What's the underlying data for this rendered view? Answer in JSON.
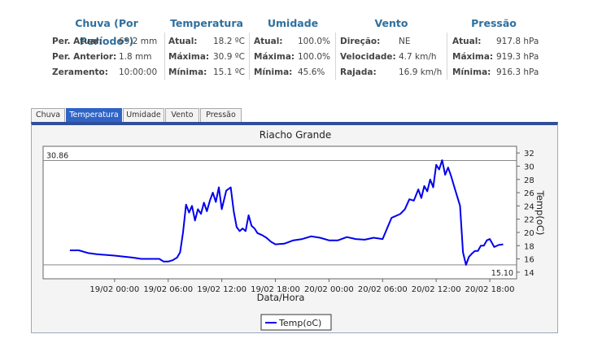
{
  "stats": {
    "chuva": {
      "title": "Chuva (Por Período*)",
      "rows": [
        {
          "label": "Per. Atual:",
          "value": "69.2 mm"
        },
        {
          "label": "Per. Anterior:",
          "value": "1.8 mm"
        },
        {
          "label": "Zeramento:",
          "value": "10:00:00"
        }
      ]
    },
    "temperatura": {
      "title": "Temperatura",
      "rows": [
        {
          "label": "Atual:",
          "value": "18.2 ºC"
        },
        {
          "label": "Máxima:",
          "value": "30.9 ºC"
        },
        {
          "label": "Mínima:",
          "value": "15.1 ºC"
        }
      ]
    },
    "umidade": {
      "title": "Umidade",
      "rows": [
        {
          "label": "Atual:",
          "value": "100.0%"
        },
        {
          "label": "Máxima:",
          "value": "100.0%"
        },
        {
          "label": "Mínima:",
          "value": "45.6%"
        }
      ]
    },
    "vento": {
      "title": "Vento",
      "rows": [
        {
          "label": "Direção:",
          "value": "NE"
        },
        {
          "label": "Velocidade:",
          "value": "4.7 km/h"
        },
        {
          "label": "Rajada:",
          "value": "16.9 km/h"
        }
      ]
    },
    "pressao": {
      "title": "Pressão",
      "rows": [
        {
          "label": "Atual:",
          "value": "917.8 hPa"
        },
        {
          "label": "Máxima:",
          "value": "919.3 hPa"
        },
        {
          "label": "Mínima:",
          "value": "916.3 hPa"
        }
      ]
    }
  },
  "tabs": [
    "Chuva",
    "Temperatura",
    "Umidade",
    "Vento",
    "Pressão"
  ],
  "active_tab": "Temperatura",
  "colors": {
    "accent": "#2f63c6",
    "series": "#0000ee",
    "header": "#2e6f9e"
  },
  "chart_data": {
    "type": "line",
    "title": "Riacho Grande",
    "xlabel": "Data/Hora",
    "ylabel": "Temp(oC)",
    "ylim": [
      13,
      33
    ],
    "yticks": [
      14,
      16,
      18,
      20,
      22,
      24,
      26,
      28,
      30,
      32
    ],
    "xlim": [
      "2025-02-18 16:00",
      "2025-02-20 21:00"
    ],
    "xticks": [
      "19/02 00:00",
      "19/02 06:00",
      "19/02 12:00",
      "19/02 18:00",
      "20/02 00:00",
      "20/02 06:00",
      "20/02 12:00",
      "20/02 18:00"
    ],
    "ref_lines": [
      {
        "value": 30.86,
        "label": "30.86"
      },
      {
        "value": 15.1,
        "label": "15.10"
      }
    ],
    "grid": false,
    "legend": "bottom-center",
    "series": [
      {
        "name": "Temp(oC)",
        "x": [
          "2025-02-18 19:00",
          "2025-02-18 20:00",
          "2025-02-18 21:00",
          "2025-02-18 22:00",
          "2025-02-19 00:00",
          "2025-02-19 02:00",
          "2025-02-19 03:00",
          "2025-02-19 04:00",
          "2025-02-19 05:00",
          "2025-02-19 05:30",
          "2025-02-19 06:00",
          "2025-02-19 06:30",
          "2025-02-19 07:00",
          "2025-02-19 07:20",
          "2025-02-19 07:40",
          "2025-02-19 08:00",
          "2025-02-19 08:20",
          "2025-02-19 08:40",
          "2025-02-19 09:00",
          "2025-02-19 09:20",
          "2025-02-19 09:40",
          "2025-02-19 10:00",
          "2025-02-19 10:20",
          "2025-02-19 10:40",
          "2025-02-19 11:00",
          "2025-02-19 11:20",
          "2025-02-19 11:40",
          "2025-02-19 12:00",
          "2025-02-19 12:30",
          "2025-02-19 13:00",
          "2025-02-19 13:20",
          "2025-02-19 13:40",
          "2025-02-19 14:00",
          "2025-02-19 14:20",
          "2025-02-19 14:40",
          "2025-02-19 15:00",
          "2025-02-19 15:20",
          "2025-02-19 15:40",
          "2025-02-19 16:00",
          "2025-02-19 16:30",
          "2025-02-19 17:00",
          "2025-02-19 17:30",
          "2025-02-19 18:00",
          "2025-02-19 19:00",
          "2025-02-19 20:00",
          "2025-02-19 21:00",
          "2025-02-19 22:00",
          "2025-02-19 23:00",
          "2025-02-20 00:00",
          "2025-02-20 01:00",
          "2025-02-20 02:00",
          "2025-02-20 03:00",
          "2025-02-20 04:00",
          "2025-02-20 05:00",
          "2025-02-20 06:00",
          "2025-02-20 07:00",
          "2025-02-20 07:30",
          "2025-02-20 08:00",
          "2025-02-20 08:30",
          "2025-02-20 09:00",
          "2025-02-20 09:30",
          "2025-02-20 10:00",
          "2025-02-20 10:20",
          "2025-02-20 10:40",
          "2025-02-20 11:00",
          "2025-02-20 11:20",
          "2025-02-20 11:40",
          "2025-02-20 12:00",
          "2025-02-20 12:20",
          "2025-02-20 12:40",
          "2025-02-20 13:00",
          "2025-02-20 13:20",
          "2025-02-20 13:40",
          "2025-02-20 14:00",
          "2025-02-20 14:20",
          "2025-02-20 14:40",
          "2025-02-20 15:00",
          "2025-02-20 15:20",
          "2025-02-20 15:40",
          "2025-02-20 16:00",
          "2025-02-20 16:20",
          "2025-02-20 16:40",
          "2025-02-20 17:00",
          "2025-02-20 17:20",
          "2025-02-20 17:40",
          "2025-02-20 18:00",
          "2025-02-20 18:30",
          "2025-02-20 19:00",
          "2025-02-20 19:30"
        ],
        "y": [
          17.3,
          17.3,
          16.9,
          16.7,
          16.5,
          16.2,
          16.0,
          16.0,
          16.0,
          15.6,
          15.6,
          15.8,
          16.2,
          17.0,
          20.0,
          24.2,
          23.0,
          24.0,
          21.8,
          23.5,
          22.8,
          24.5,
          23.2,
          24.8,
          26.0,
          24.6,
          26.8,
          23.5,
          26.3,
          26.8,
          23.2,
          20.8,
          20.2,
          20.6,
          20.2,
          22.6,
          21.0,
          20.6,
          19.9,
          19.6,
          19.2,
          18.6,
          18.2,
          18.3,
          18.8,
          19.0,
          19.4,
          19.2,
          18.8,
          18.8,
          19.3,
          19.0,
          18.9,
          19.2,
          19.0,
          22.2,
          22.5,
          22.8,
          23.5,
          25.0,
          24.8,
          26.5,
          25.2,
          27.0,
          26.2,
          28.0,
          26.8,
          30.2,
          29.5,
          30.9,
          28.7,
          29.8,
          28.5,
          27.0,
          25.5,
          24.0,
          17.0,
          15.1,
          16.3,
          16.8,
          17.2,
          17.2,
          18.0,
          18.0,
          18.8,
          19.0,
          17.8,
          18.1,
          18.2
        ]
      }
    ]
  }
}
